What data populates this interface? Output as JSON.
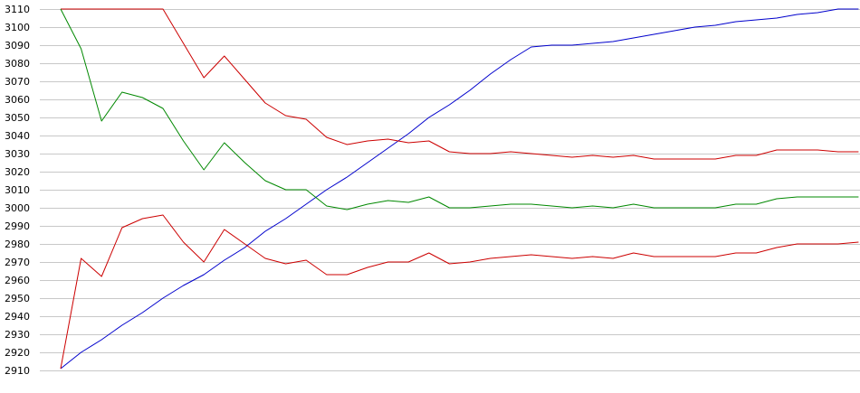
{
  "chart_data": {
    "type": "line",
    "title": "",
    "xlabel": "",
    "ylabel": "",
    "ylim": [
      2910,
      3110
    ],
    "y_ticks": [
      2910,
      2920,
      2930,
      2940,
      2950,
      2960,
      2970,
      2980,
      2990,
      3000,
      3010,
      3020,
      3030,
      3040,
      3050,
      3060,
      3070,
      3080,
      3090,
      3100,
      3110
    ],
    "grid": "horizontal",
    "legend": "none",
    "x": [
      0,
      1,
      2,
      3,
      4,
      5,
      6,
      7,
      8,
      9,
      10,
      11,
      12,
      13,
      14,
      15,
      16,
      17,
      18,
      19,
      20,
      21,
      22,
      23,
      24,
      25,
      26,
      27,
      28,
      29,
      30,
      31,
      32,
      33,
      34,
      35,
      36,
      37,
      38,
      39
    ],
    "series": [
      {
        "color": "#0000cc",
        "values": [
          2911,
          2920,
          2927,
          2935,
          2942,
          2950,
          2957,
          2963,
          2971,
          2978,
          2987,
          2994,
          3002,
          3010,
          3017,
          3025,
          3033,
          3041,
          3050,
          3057,
          3065,
          3074,
          3082,
          3089,
          3090,
          3090,
          3091,
          3092,
          3094,
          3096,
          3098,
          3100,
          3101,
          3103,
          3104,
          3105,
          3107,
          3108,
          3110,
          3110
        ]
      },
      {
        "color": "#cc0000",
        "values": [
          3110,
          3110,
          3110,
          3110,
          3110,
          3110,
          3091,
          3072,
          3084,
          3071,
          3058,
          3051,
          3049,
          3039,
          3035,
          3037,
          3038,
          3036,
          3037,
          3031,
          3030,
          3030,
          3031,
          3030,
          3029,
          3028,
          3029,
          3028,
          3029,
          3027,
          3027,
          3027,
          3027,
          3029,
          3029,
          3032,
          3032,
          3032,
          3031,
          3031
        ]
      },
      {
        "color": "#008800",
        "values": [
          3110,
          3088,
          3048,
          3064,
          3061,
          3055,
          3037,
          3021,
          3036,
          3025,
          3015,
          3010,
          3010,
          3001,
          2999,
          3002,
          3004,
          3003,
          3006,
          3000,
          3000,
          3001,
          3002,
          3002,
          3001,
          3000,
          3001,
          3000,
          3002,
          3000,
          3000,
          3000,
          3000,
          3002,
          3002,
          3005,
          3006,
          3006,
          3006,
          3006
        ]
      },
      {
        "color": "#cc0000",
        "values": [
          2911,
          2972,
          2962,
          2989,
          2994,
          2996,
          2981,
          2970,
          2988,
          2980,
          2972,
          2969,
          2971,
          2963,
          2963,
          2967,
          2970,
          2970,
          2975,
          2969,
          2970,
          2972,
          2973,
          2974,
          2973,
          2972,
          2973,
          2972,
          2975,
          2973,
          2973,
          2973,
          2973,
          2975,
          2975,
          2978,
          2980,
          2980,
          2980,
          2981
        ]
      }
    ]
  }
}
